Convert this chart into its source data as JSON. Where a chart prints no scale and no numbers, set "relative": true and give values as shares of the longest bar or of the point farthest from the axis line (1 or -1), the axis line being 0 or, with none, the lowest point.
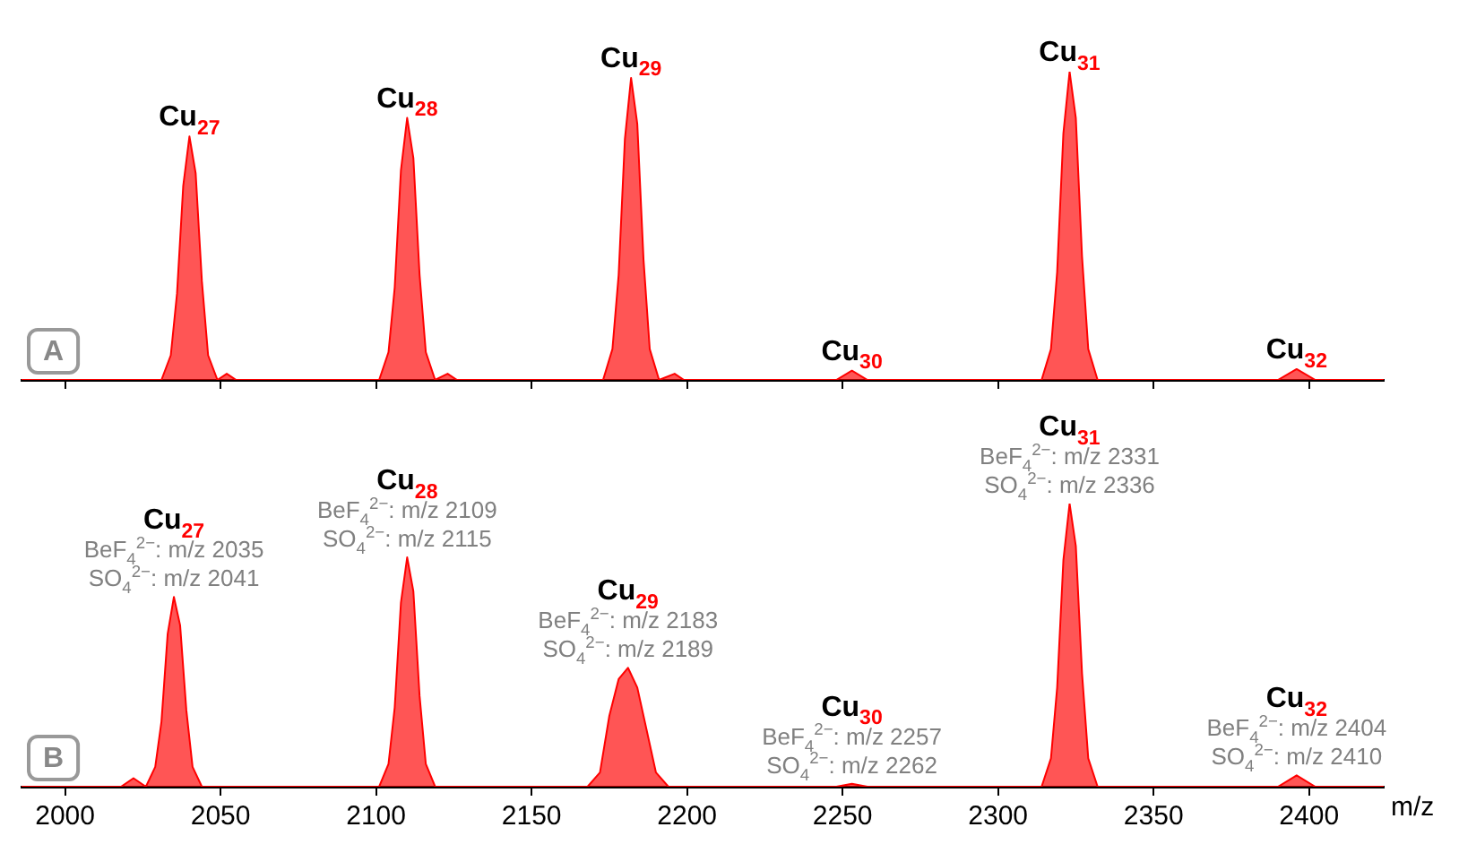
{
  "chart_data": [
    {
      "type": "area",
      "title": "A",
      "relative": true,
      "tick_labels": false,
      "xlim": [
        1986,
        2424
      ],
      "xticks": [
        2000,
        2050,
        2100,
        2150,
        2200,
        2250,
        2300,
        2350,
        2400
      ],
      "series": [
        {
          "color": "#ff0000",
          "x": [
            1986,
            2031,
            2034,
            2036,
            2038,
            2040,
            2042,
            2044,
            2046,
            2049,
            2052,
            2055,
            2101,
            2104,
            2106,
            2108,
            2110,
            2112,
            2114,
            2116,
            2119,
            2123,
            2126,
            2173,
            2176,
            2178,
            2180,
            2182,
            2184,
            2186,
            2188,
            2191,
            2196,
            2199,
            2248,
            2253,
            2258,
            2314,
            2317,
            2319,
            2321,
            2323,
            2325,
            2327,
            2329,
            2332,
            2390,
            2396,
            2402,
            2424
          ],
          "values": [
            0,
            0,
            0.08,
            0.28,
            0.63,
            0.79,
            0.67,
            0.32,
            0.08,
            0,
            0.02,
            0,
            0,
            0.09,
            0.3,
            0.68,
            0.85,
            0.72,
            0.34,
            0.09,
            0,
            0.02,
            0,
            0,
            0.1,
            0.34,
            0.78,
            0.98,
            0.83,
            0.39,
            0.1,
            0,
            0.02,
            0,
            0,
            0.03,
            0,
            0,
            0.1,
            0.35,
            0.8,
            1,
            0.85,
            0.4,
            0.1,
            0,
            0,
            0.035,
            0,
            0
          ]
        }
      ],
      "annotations": [
        {
          "text": "Cu$_{27}$",
          "x": 2040,
          "y": 0.79
        },
        {
          "text": "Cu$_{28}$",
          "x": 2110,
          "y": 0.85
        },
        {
          "text": "Cu$_{29}$",
          "x": 2182,
          "y": 0.98
        },
        {
          "text": "Cu$_{30}$",
          "x": 2253,
          "y": 0.03
        },
        {
          "text": "Cu$_{31}$",
          "x": 2323,
          "y": 1
        },
        {
          "text": "Cu$_{32}$",
          "x": 2396,
          "y": 0.035
        }
      ]
    },
    {
      "type": "area",
      "title": "B",
      "relative": true,
      "xlabel": "m/z",
      "xlim": [
        1986,
        2424
      ],
      "xticks": [
        2000,
        2050,
        2100,
        2150,
        2200,
        2250,
        2300,
        2350,
        2400
      ],
      "series": [
        {
          "color": "#ff0000",
          "x": [
            1986,
            2018,
            2022,
            2026,
            2029,
            2031,
            2033,
            2035,
            2037,
            2039,
            2041,
            2044,
            2101,
            2104,
            2106,
            2108,
            2110,
            2112,
            2114,
            2116,
            2119,
            2168,
            2172,
            2175,
            2178,
            2181,
            2184,
            2187,
            2190,
            2194,
            2248,
            2253,
            2258,
            2314,
            2317,
            2319,
            2321,
            2323,
            2325,
            2327,
            2329,
            2332,
            2390,
            2396,
            2402,
            2424
          ],
          "values": [
            0,
            0,
            0.03,
            0,
            0.07,
            0.23,
            0.54,
            0.67,
            0.57,
            0.27,
            0.07,
            0,
            0,
            0.08,
            0.28,
            0.65,
            0.81,
            0.69,
            0.32,
            0.08,
            0,
            0,
            0.05,
            0.25,
            0.38,
            0.42,
            0.35,
            0.2,
            0.05,
            0,
            0,
            0.01,
            0,
            0,
            0.1,
            0.35,
            0.8,
            1,
            0.85,
            0.4,
            0.1,
            0,
            0,
            0.04,
            0,
            0
          ]
        }
      ],
      "annotations": [
        {
          "text": "Cu$_{27}$",
          "x": 2035,
          "y": 0.67
        },
        {
          "text": "BeF$_{4}$$^{2−}$: m/z 2035",
          "x": 2035,
          "y": 0.67
        },
        {
          "text": "SO$_{4}$$^{2−}$: m/z 2041",
          "x": 2035,
          "y": 0.67
        },
        {
          "text": "Cu$_{28}$",
          "x": 2110,
          "y": 0.81
        },
        {
          "text": "BeF$_{4}$$^{2−}$: m/z 2109",
          "x": 2110,
          "y": 0.81
        },
        {
          "text": "SO$_{4}$$^{2−}$: m/z 2115",
          "x": 2110,
          "y": 0.81
        },
        {
          "text": "Cu$_{29}$",
          "x": 2181,
          "y": 0.42
        },
        {
          "text": "BeF$_{4}$$^{2−}$: m/z 2183",
          "x": 2181,
          "y": 0.42
        },
        {
          "text": "SO$_{4}$$^{2−}$: m/z 2189",
          "x": 2181,
          "y": 0.42
        },
        {
          "text": "Cu$_{30}$",
          "x": 2253,
          "y": 0.01
        },
        {
          "text": "BeF$_{4}$$^{2−}$: m/z 2257",
          "x": 2253,
          "y": 0.01
        },
        {
          "text": "SO$_{4}$$^{2−}$: m/z 2262",
          "x": 2253,
          "y": 0.01
        },
        {
          "text": "Cu$_{31}$",
          "x": 2323,
          "y": 1
        },
        {
          "text": "BeF$_{4}$$^{2−}$: m/z 2331",
          "x": 2323,
          "y": 1
        },
        {
          "text": "SO$_{4}$$^{2−}$: m/z 2336",
          "x": 2323,
          "y": 1
        },
        {
          "text": "Cu$_{32}$",
          "x": 2396,
          "y": 0.04
        },
        {
          "text": "BeF$_{4}$$^{2−}$: m/z 2404",
          "x": 2396,
          "y": 0.04
        },
        {
          "text": "SO$_{4}$$^{2−}$: m/z 2410",
          "x": 2396,
          "y": 0.04
        }
      ]
    }
  ]
}
